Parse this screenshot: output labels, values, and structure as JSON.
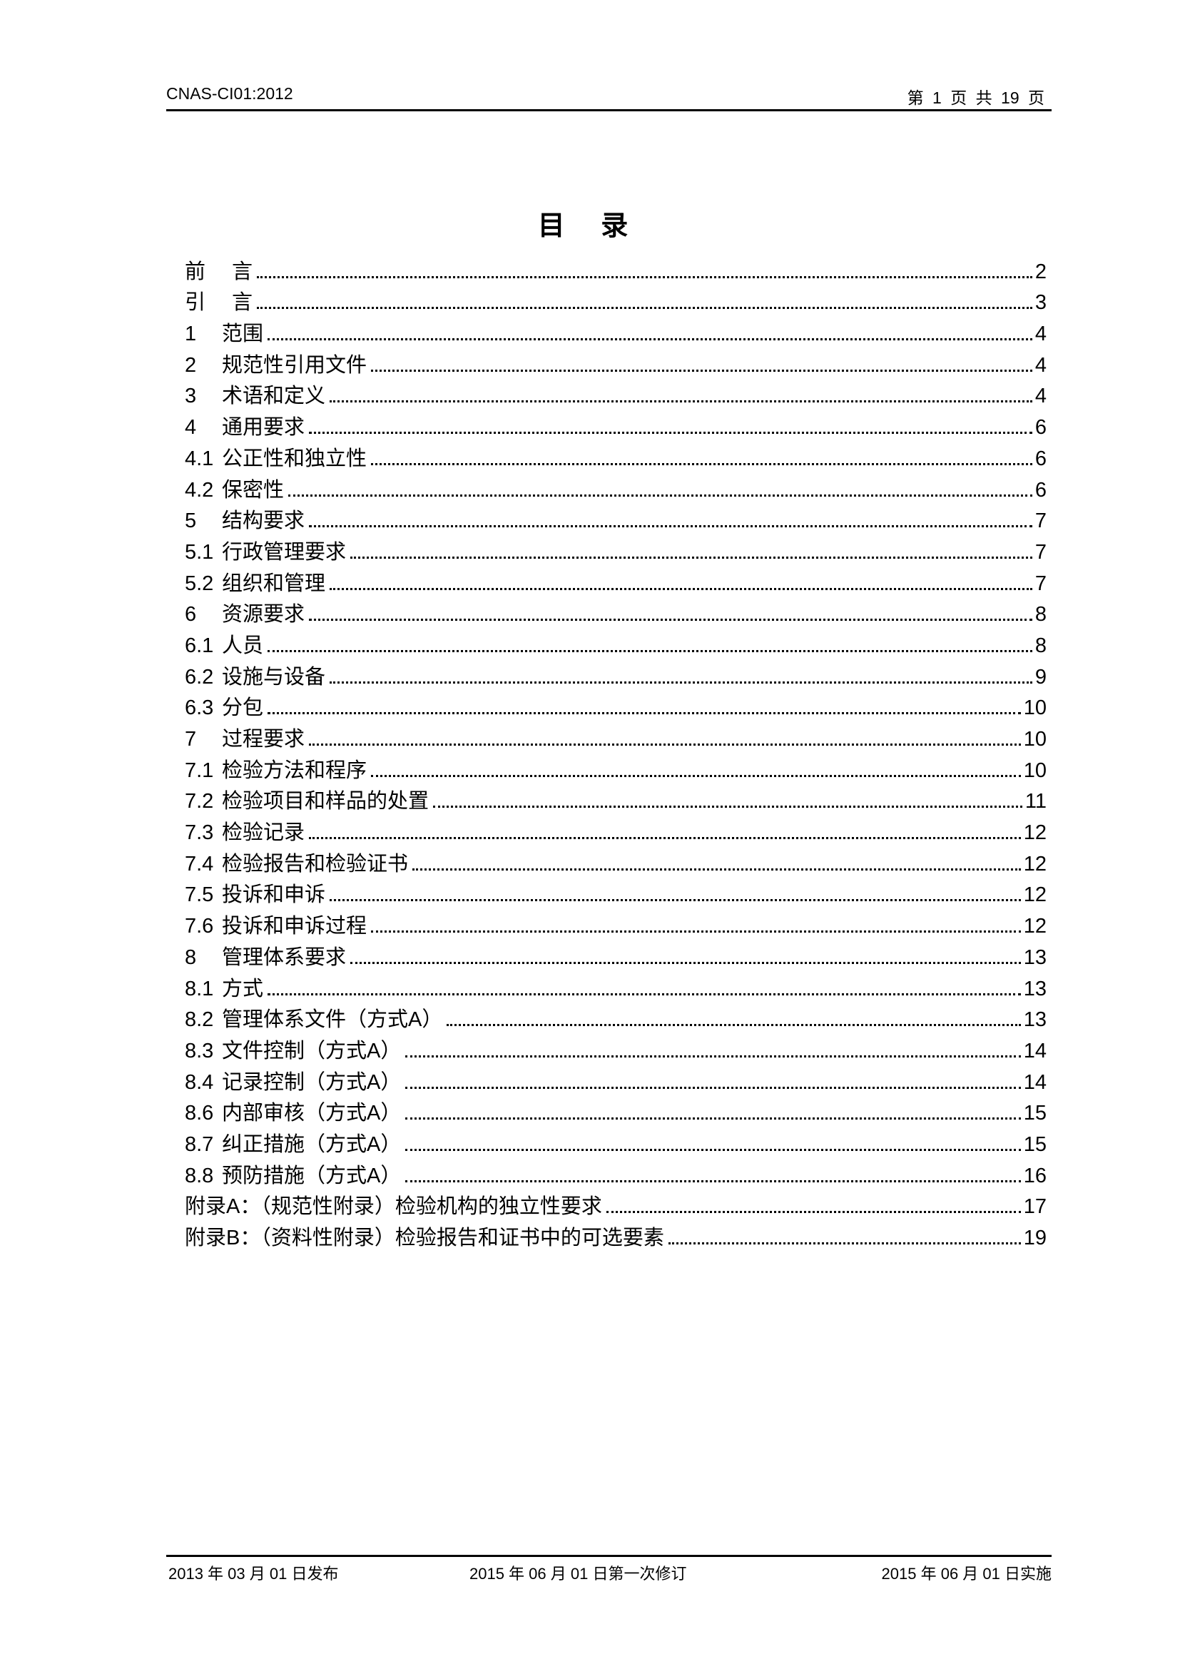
{
  "header": {
    "doc_code": "CNAS-CI01:2012",
    "page_info": "第 1 页 共 19 页"
  },
  "title": "目 录",
  "toc": [
    {
      "num": "前",
      "title": "言",
      "page": "2"
    },
    {
      "num": "引",
      "title": "言",
      "page": "3"
    },
    {
      "num": "1",
      "title": "范围",
      "page": "4"
    },
    {
      "num": "2",
      "title": "规范性引用文件",
      "page": "4"
    },
    {
      "num": "3",
      "title": "术语和定义",
      "page": "4"
    },
    {
      "num": "4",
      "title": "通用要求",
      "page": "6"
    },
    {
      "num": "4.1",
      "title": "公正性和独立性",
      "page": "6"
    },
    {
      "num": "4.2",
      "title": "保密性",
      "page": "6"
    },
    {
      "num": "5",
      "title": "结构要求",
      "page": "7"
    },
    {
      "num": "5.1",
      "title": "行政管理要求",
      "page": "7"
    },
    {
      "num": "5.2",
      "title": "组织和管理",
      "page": "7"
    },
    {
      "num": "6",
      "title": "资源要求",
      "page": "8"
    },
    {
      "num": "6.1",
      "title": "人员",
      "page": "8"
    },
    {
      "num": "6.2",
      "title": "设施与设备",
      "page": "9"
    },
    {
      "num": "6.3",
      "title": "分包",
      "page": "10"
    },
    {
      "num": "7",
      "title": "过程要求",
      "page": "10"
    },
    {
      "num": "7.1",
      "title": "检验方法和程序",
      "page": "10"
    },
    {
      "num": "7.2",
      "title": "检验项目和样品的处置",
      "page": "11"
    },
    {
      "num": "7.3",
      "title": "检验记录",
      "page": "12"
    },
    {
      "num": "7.4",
      "title": "检验报告和检验证书",
      "page": "12"
    },
    {
      "num": "7.5",
      "title": "投诉和申诉",
      "page": "12"
    },
    {
      "num": "7.6",
      "title": "投诉和申诉过程",
      "page": "12"
    },
    {
      "num": "8",
      "title": "管理体系要求",
      "page": "13"
    },
    {
      "num": "8.1",
      "title": "方式",
      "page": "13"
    },
    {
      "num": "8.2",
      "title": "管理体系文件（方式A）",
      "page": "13"
    },
    {
      "num": "8.3",
      "title": "文件控制（方式A）",
      "page": "14"
    },
    {
      "num": "8.4",
      "title": "记录控制（方式A）",
      "page": "14"
    },
    {
      "num": "8.6",
      "title": "内部审核（方式A）",
      "page": "15"
    },
    {
      "num": "8.7",
      "title": "纠正措施（方式A）",
      "page": "15"
    },
    {
      "num": "8.8",
      "title": "预防措施（方式A）",
      "page": "16"
    },
    {
      "num": "",
      "title": "附录A：（规范性附录）检验机构的独立性要求",
      "page": "17"
    },
    {
      "num": "",
      "title": "附录B：（资料性附录）检验报告和证书中的可选要素",
      "page": "19"
    }
  ],
  "footer": {
    "issued": "2013 年 03 月 01 日发布",
    "revised": "2015 年 06 月 01 日第一次修订",
    "effective": "2015 年 06 月 01 日实施"
  }
}
